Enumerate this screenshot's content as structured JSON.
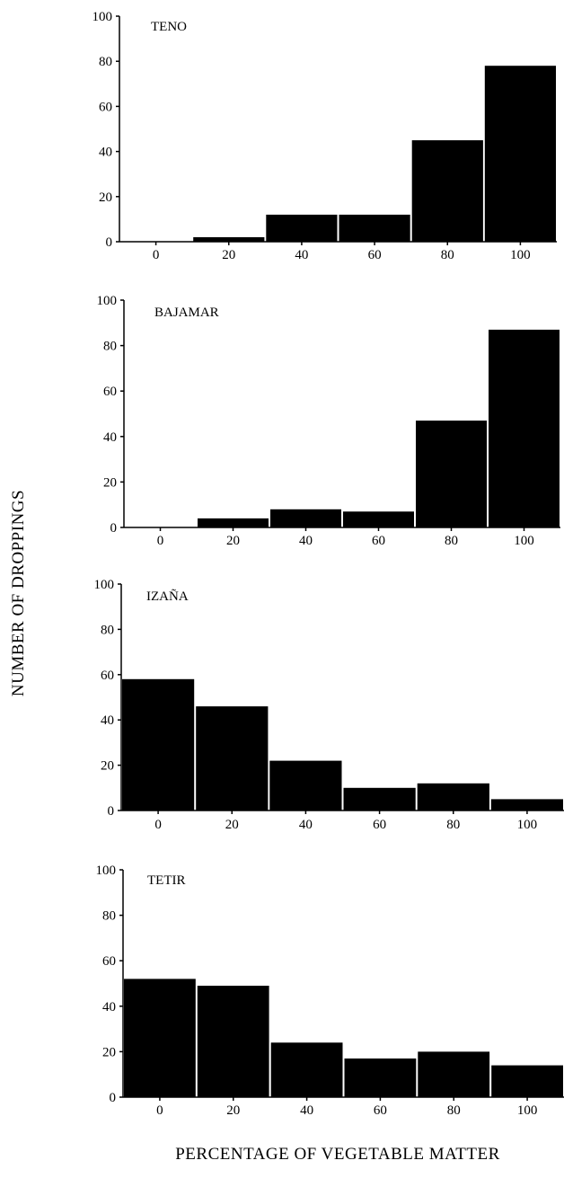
{
  "chart_data": {
    "type": "bar",
    "ylabel": "NUMBER  OF  DROPPINGS",
    "xlabel": "PERCENTAGE OF VEGETABLE MATTER",
    "categories": [
      "0",
      "20",
      "40",
      "60",
      "80",
      "100"
    ],
    "ylim": [
      0,
      100
    ],
    "yticks": [
      "0",
      "20",
      "40",
      "60",
      "80",
      "100"
    ],
    "grid": false,
    "panels": [
      {
        "name": "TENO",
        "values": [
          0,
          2,
          12,
          12,
          45,
          78
        ]
      },
      {
        "name": "BAJAMAR",
        "values": [
          0,
          4,
          8,
          7,
          47,
          87
        ]
      },
      {
        "name": "IZAÑA",
        "values": [
          58,
          46,
          22,
          10,
          12,
          5
        ]
      },
      {
        "name": "TETIR",
        "values": [
          52,
          49,
          24,
          17,
          20,
          14
        ]
      }
    ]
  },
  "colors": {
    "bar": "#000000",
    "axis": "#000000",
    "background": "#ffffff"
  }
}
